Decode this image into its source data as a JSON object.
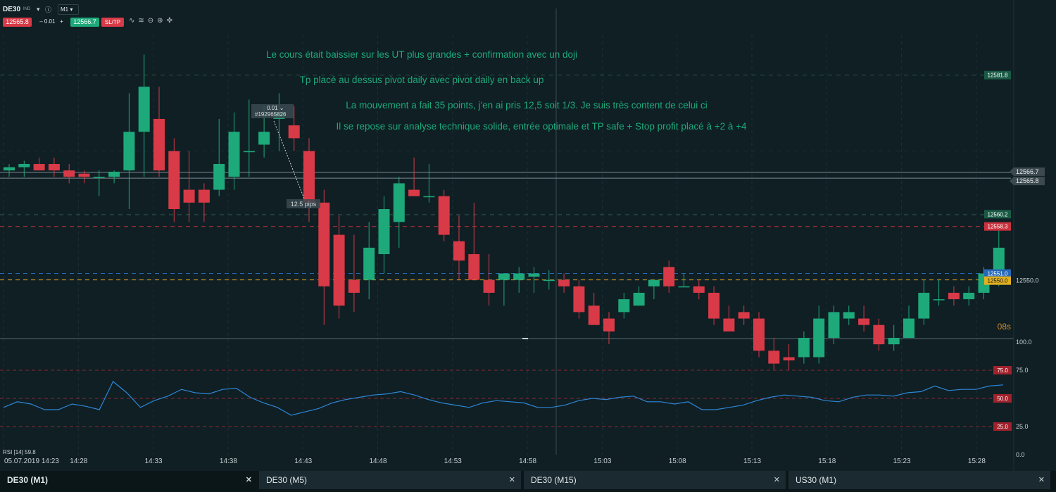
{
  "toolbar": {
    "symbol": "DE30",
    "symbol_sub": "IND",
    "timeframe": "M1",
    "sell_price": "12565.8",
    "quantity": "0.01",
    "buy_price": "12566.7",
    "sltp_label": "SL/TP"
  },
  "annotations": [
    "Le cours était baissier sur les UT plus grandes + confirmation avec un doji",
    "Tp placé au dessus pivot daily avec pivot daily en back up",
    "La mouvement a fait 35 points, j'en ai pris 12,5 soit 1/3. Je suis très content de celui ci",
    "Il se repose sur analyse technique solide, entrée optimale et TP safe + Stop profit placé à +2 à +4"
  ],
  "order": {
    "qty": "0.01",
    "id": "#192965826",
    "pips": "12.5 pips"
  },
  "countdown": "08s",
  "tabs": [
    {
      "label": "DE30 (M1)",
      "active": true
    },
    {
      "label": "DE30 (M5)",
      "active": false
    },
    {
      "label": "DE30 (M15)",
      "active": false
    },
    {
      "label": "US30 (M1)",
      "active": false
    }
  ],
  "colors": {
    "background": "#0f1f24",
    "bull": "#1ea97a",
    "bear": "#d93a47",
    "rsi": "#2f86d6",
    "pivot": "#e0a020",
    "annotation": "#1ea97a"
  },
  "chart_data": {
    "type": "candlestick",
    "ylim": [
      12541,
      12588
    ],
    "x_tick_labels": [
      "05.07.2019 14:23",
      "14:28",
      "14:33",
      "14:38",
      "14:43",
      "14:48",
      "14:53",
      "14:58",
      "15:03",
      "15:08",
      "15:13",
      "15:18",
      "15:23",
      "15:28"
    ],
    "price_tags": [
      {
        "value": 12581.8,
        "label": "12581.8",
        "color": "#1a5a45"
      },
      {
        "value": 12566.7,
        "label": "12566.7",
        "color": "#4a5a60"
      },
      {
        "value": 12565.8,
        "label": "12565.8",
        "color": "#4a5a60"
      },
      {
        "value": 12560.2,
        "label": "12560.2",
        "color": "#1a5a45"
      },
      {
        "value": 12558.3,
        "label": "12558.3",
        "color": "#c8323e"
      },
      {
        "value": 12551.0,
        "label": "12551.0",
        "color": "#2568b8"
      },
      {
        "value": 12550.0,
        "label": "12550.0",
        "color": "#e0b020"
      }
    ],
    "axis_label": "12550.0",
    "candles": [
      [
        12567.0,
        12568.0,
        12566.0,
        12567.5
      ],
      [
        12567.5,
        12568.5,
        12566.0,
        12568.0
      ],
      [
        12568.0,
        12569.0,
        12567.0,
        12567.0
      ],
      [
        12568.0,
        12569.0,
        12566.0,
        12567.0
      ],
      [
        12567.0,
        12568.0,
        12565.0,
        12566.0
      ],
      [
        12566.5,
        12567.0,
        12565.0,
        12566.0
      ],
      [
        12566.0,
        12567.0,
        12563.0,
        12566.0
      ],
      [
        12566.0,
        12567.0,
        12565.0,
        12566.8
      ],
      [
        12567.0,
        12579.0,
        12561.0,
        12573.0
      ],
      [
        12573.0,
        12585.0,
        12566.0,
        12580.0
      ],
      [
        12575.0,
        12580.0,
        12566.0,
        12567.0
      ],
      [
        12570.0,
        12572.0,
        12559.0,
        12561.0
      ],
      [
        12564.0,
        12570.0,
        12559.0,
        12562.0
      ],
      [
        12564.0,
        12565.0,
        12559.0,
        12562.0
      ],
      [
        12564.0,
        12575.0,
        12563.0,
        12568.0
      ],
      [
        12566.0,
        12576.0,
        12564.0,
        12573.0
      ],
      [
        12570.0,
        12578.0,
        12566.0,
        12570.0
      ],
      [
        12571.0,
        12577.0,
        12569.0,
        12573.0
      ],
      [
        12575.0,
        12579.0,
        12570.0,
        12576.0
      ],
      [
        12574.0,
        12577.0,
        12570.0,
        12572.0
      ],
      [
        12570.0,
        12572.0,
        12559.0,
        12562.0
      ],
      [
        12562.0,
        12564.0,
        12543.0,
        12549.0
      ],
      [
        12557.0,
        12560.0,
        12544.0,
        12546.0
      ],
      [
        12550.0,
        12557.0,
        12545.0,
        12548.0
      ],
      [
        12550.0,
        12559.0,
        12547.0,
        12555.0
      ],
      [
        12554.0,
        12563.0,
        12551.0,
        12561.0
      ],
      [
        12559.0,
        12566.0,
        12555.0,
        12565.0
      ],
      [
        12564.0,
        12569.0,
        12563.0,
        12563.0
      ],
      [
        12563.0,
        12568.0,
        12562.0,
        12563.0
      ],
      [
        12563.0,
        12564.0,
        12556.0,
        12557.0
      ],
      [
        12556.0,
        12560.0,
        12550.0,
        12553.0
      ],
      [
        12554.0,
        12562.0,
        12550.0,
        12550.0
      ],
      [
        12550.0,
        12554.0,
        12546.0,
        12548.0
      ],
      [
        12550.0,
        12551.0,
        12546.0,
        12551.0
      ],
      [
        12550.0,
        12552.0,
        12548.0,
        12551.0
      ],
      [
        12550.5,
        12552.0,
        12548.0,
        12551.0
      ],
      [
        12550.0,
        12551.5,
        12548.5,
        12550.0
      ],
      [
        12550.0,
        12551.0,
        12548.0,
        12549.0
      ],
      [
        12549.0,
        12550.0,
        12544.0,
        12545.0
      ],
      [
        12546.0,
        12548.0,
        12543.0,
        12543.0
      ],
      [
        12544.0,
        12545.0,
        12540.0,
        12542.0
      ],
      [
        12545.0,
        12548.0,
        12544.0,
        12547.0
      ],
      [
        12546.0,
        12549.0,
        12546.0,
        12548.0
      ],
      [
        12549.0,
        12550.0,
        12547.0,
        12550.0
      ],
      [
        12552.0,
        12553.0,
        12548.0,
        12549.0
      ],
      [
        12549.0,
        12551.0,
        12549.0,
        12549.0
      ],
      [
        12549.0,
        12550.0,
        12547.0,
        12548.0
      ],
      [
        12548.0,
        12549.0,
        12543.0,
        12544.0
      ],
      [
        12544.0,
        12546.0,
        12542.0,
        12542.0
      ],
      [
        12545.0,
        12546.0,
        12543.0,
        12544.0
      ],
      [
        12544.0,
        12545.0,
        12538.0,
        12539.0
      ],
      [
        12539.0,
        12541.0,
        12536.0,
        12537.0
      ],
      [
        12538.0,
        12540.0,
        12536.0,
        12537.5
      ],
      [
        12538.0,
        12542.0,
        12537.0,
        12541.0
      ],
      [
        12538.0,
        12546.0,
        12537.0,
        12544.0
      ],
      [
        12541.0,
        12546.0,
        12540.0,
        12545.0
      ],
      [
        12544.0,
        12546.0,
        12543.0,
        12545.0
      ],
      [
        12544.0,
        12546.0,
        12542.0,
        12543.0
      ],
      [
        12543.0,
        12544.0,
        12539.0,
        12540.0
      ],
      [
        12540.0,
        12543.0,
        12539.0,
        12541.0
      ],
      [
        12541.0,
        12546.0,
        12541.0,
        12544.0
      ],
      [
        12544.0,
        12550.0,
        12543.0,
        12548.0
      ],
      [
        12547.0,
        12550.0,
        12546.0,
        12547.0
      ],
      [
        12548.0,
        12549.0,
        12546.0,
        12547.0
      ],
      [
        12547.0,
        12549.0,
        12546.0,
        12548.0
      ],
      [
        12548.0,
        12552.0,
        12547.0,
        12551.0
      ],
      [
        12551.0,
        12558.0,
        12549.0,
        12555.0
      ]
    ],
    "rsi": {
      "label": "RSI [14] 59.8",
      "levels": [
        75,
        50,
        25
      ],
      "axis_labels": [
        "100.0",
        "75.0",
        "25.0",
        "0.0"
      ],
      "level_tags": [
        "75.0",
        "50.0",
        "25.0"
      ],
      "values": [
        42,
        47,
        45,
        40,
        40,
        45,
        43,
        40,
        65,
        55,
        42,
        48,
        52,
        58,
        55,
        54,
        58,
        59,
        51,
        46,
        42,
        35,
        38,
        41,
        46,
        49,
        51,
        53,
        54,
        56,
        53,
        49,
        46,
        44,
        42,
        46,
        48,
        47,
        46,
        42,
        42,
        44,
        48,
        50,
        49,
        51,
        52,
        47,
        47,
        45,
        47,
        40,
        40,
        42,
        44,
        48,
        51,
        53,
        52,
        51,
        48,
        47,
        51,
        53,
        53,
        52,
        55,
        56,
        61,
        57,
        58,
        58,
        61,
        62
      ]
    }
  }
}
